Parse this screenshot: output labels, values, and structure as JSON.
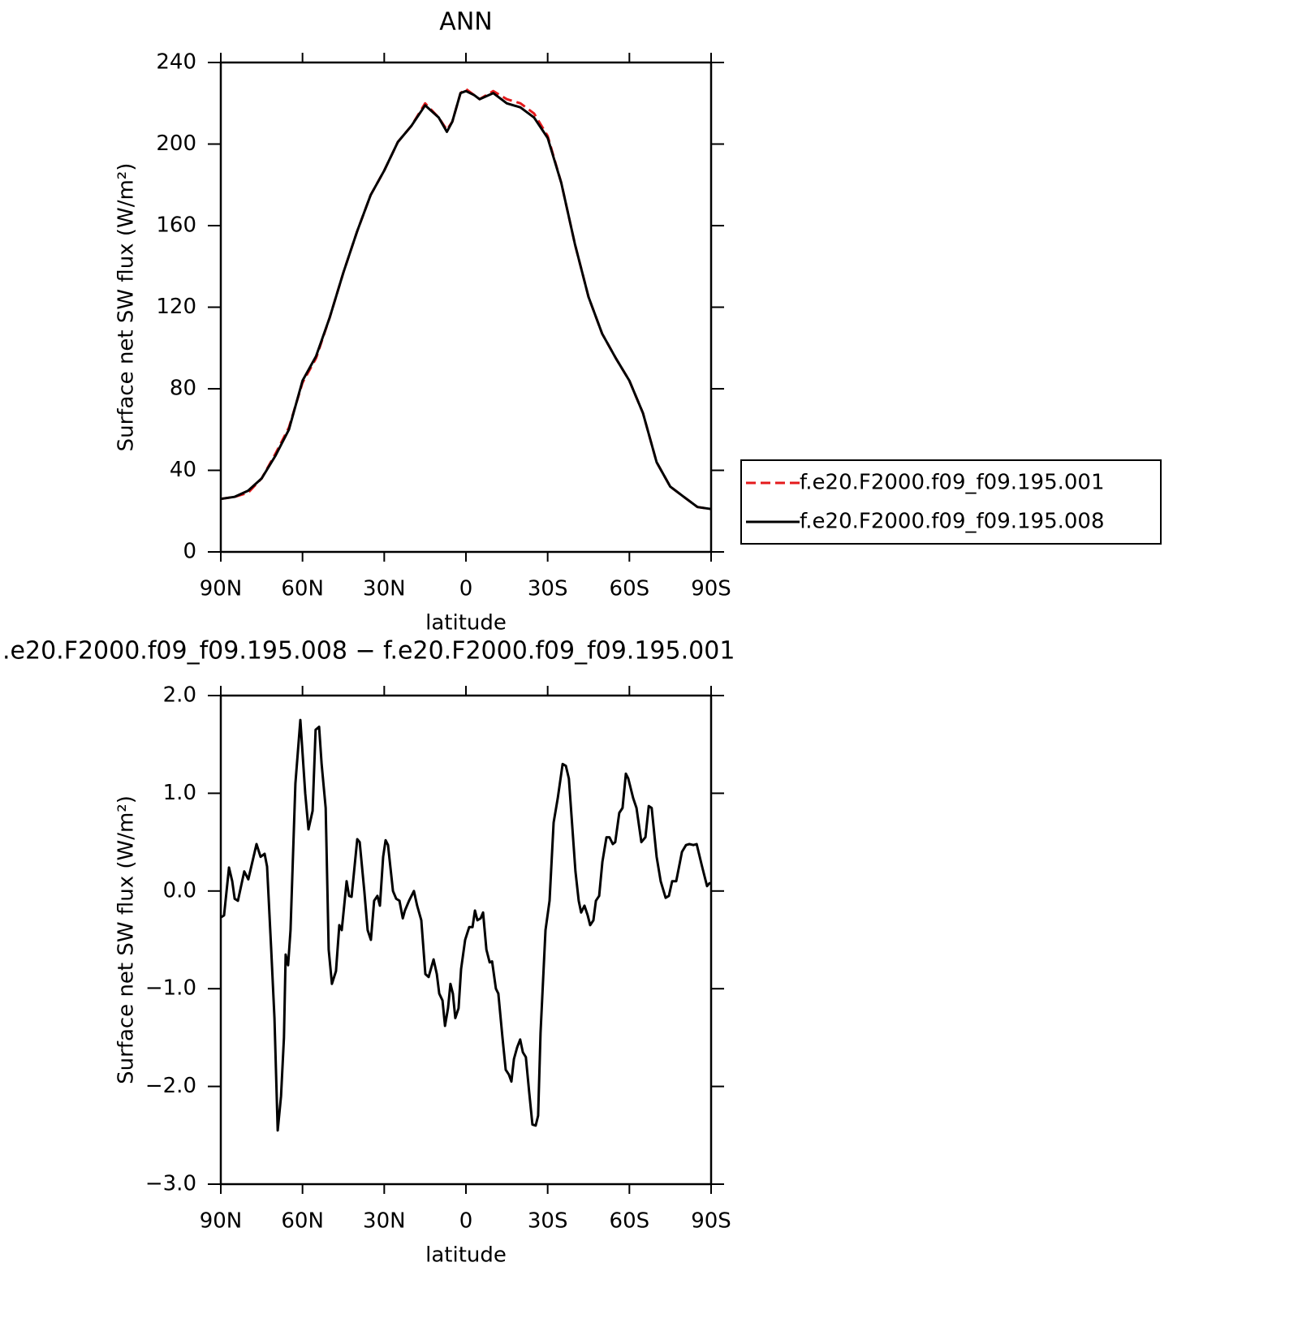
{
  "chart_data": [
    {
      "type": "line",
      "title": "ANN",
      "xlabel": "latitude",
      "ylabel": "Surface net SW flux (W/m²)",
      "x": [
        90,
        85,
        80,
        75,
        70,
        65,
        60,
        55,
        50,
        45,
        40,
        35,
        30,
        25,
        20,
        15,
        10,
        7,
        5,
        2,
        0,
        -3,
        -5,
        -10,
        -15,
        -20,
        -25,
        -30,
        -35,
        -40,
        -45,
        -50,
        -55,
        -60,
        -65,
        -70,
        -75,
        -80,
        -85,
        -90
      ],
      "series": [
        {
          "name": "f.e20.F2000.f09_f09.195.001",
          "color": "#e41a1c",
          "dash": true,
          "values": [
            26,
            27,
            29,
            36,
            48,
            61,
            83,
            95,
            115,
            137,
            157,
            175,
            187,
            201,
            209,
            220,
            213,
            207,
            211,
            225,
            227,
            224,
            222,
            226,
            222,
            220,
            215,
            204,
            181,
            151,
            125,
            107,
            95,
            84,
            68,
            44,
            32,
            27,
            22,
            21
          ]
        },
        {
          "name": "f.e20.F2000.f09_f09.195.008",
          "color": "#000000",
          "dash": false,
          "values": [
            26,
            27,
            30,
            36,
            47,
            60,
            84,
            96,
            115,
            137,
            157,
            175,
            187,
            201,
            209,
            219,
            213,
            206,
            211,
            225,
            226,
            224,
            222,
            225,
            220,
            218,
            213,
            203,
            181,
            151,
            125,
            107,
            95,
            84,
            68,
            44,
            32,
            27,
            22,
            21
          ]
        }
      ],
      "xlim": [
        90,
        -90
      ],
      "xticks": [
        {
          "value": 90,
          "label": "90N"
        },
        {
          "value": 60,
          "label": "60N"
        },
        {
          "value": 30,
          "label": "30N"
        },
        0,
        {
          "value": -30,
          "label": "30S"
        },
        {
          "value": -60,
          "label": "60S"
        },
        {
          "value": -90,
          "label": "90S"
        }
      ],
      "ylim": [
        0,
        240
      ],
      "yticks": [
        0,
        40,
        80,
        120,
        160,
        200,
        240
      ],
      "legend": "right"
    },
    {
      "type": "line",
      "title": ".e20.F2000.f09_f09.195.008 − f.e20.F2000.f09_f09.195.001",
      "xlabel": "latitude",
      "ylabel": "Surface net SW flux (W/m²)",
      "x": [
        90,
        88.8,
        87.0,
        85.8,
        84.9,
        83.7,
        81.4,
        79.9,
        76.9,
        75.4,
        73.9,
        73.0,
        71.5,
        70.3,
        69.1,
        67.9,
        66.8,
        66.2,
        65.3,
        64.4,
        62.6,
        60.8,
        59.0,
        57.8,
        56.3,
        55.2,
        53.9,
        53.0,
        51.5,
        50.4,
        49.2,
        47.7,
        46.5,
        45.6,
        43.8,
        42.9,
        42.0,
        39.9,
        39.0,
        37.3,
        36.1,
        34.9,
        33.7,
        32.5,
        31.6,
        30.4,
        29.5,
        28.6,
        26.8,
        25.6,
        24.4,
        23.2,
        22.4,
        20.9,
        19.1,
        17.9,
        16.4,
        14.9,
        13.7,
        11.9,
        10.7,
        9.8,
        8.6,
        7.7,
        6.6,
        5.7,
        4.8,
        3.9,
        2.7,
        1.8,
        0.3,
        -1.2,
        -2.4,
        -3.3,
        -4.2,
        -5.4,
        -6.3,
        -7.5,
        -8.7,
        -9.6,
        -11.0,
        -11.9,
        -13.4,
        -14.6,
        -15.8,
        -16.7,
        -17.6,
        -18.8,
        -19.9,
        -20.9,
        -22.0,
        -23.2,
        -24.4,
        -25.6,
        -26.5,
        -27.4,
        -29.2,
        -30.7,
        -32.2,
        -33.7,
        -35.5,
        -36.7,
        -37.8,
        -40.2,
        -41.4,
        -42.3,
        -43.5,
        -44.7,
        -45.6,
        -46.8,
        -47.7,
        -48.9,
        -50.1,
        -51.6,
        -52.7,
        -53.9,
        -54.8,
        -56.3,
        -57.5,
        -58.7,
        -59.6,
        -61.4,
        -62.6,
        -64.4,
        -65.9,
        -67.1,
        -68.2,
        -70.0,
        -71.5,
        -73.3,
        -74.5,
        -75.7,
        -77.2,
        -78.1,
        -79.3,
        -80.8,
        -82.0,
        -83.5,
        -84.7,
        -86.7,
        -88.5,
        -89.4,
        -90
      ],
      "series": [
        {
          "color": "#000000",
          "dash": false,
          "values": [
            -0.27,
            -0.25,
            0.24,
            0.1,
            -0.08,
            -0.1,
            0.2,
            0.12,
            0.48,
            0.35,
            0.38,
            0.25,
            -0.6,
            -1.3,
            -2.45,
            -2.1,
            -1.5,
            -0.65,
            -0.76,
            -0.4,
            1.1,
            1.75,
            1.0,
            0.63,
            0.82,
            1.65,
            1.68,
            1.3,
            0.85,
            -0.6,
            -0.95,
            -0.82,
            -0.35,
            -0.4,
            0.1,
            -0.05,
            -0.06,
            0.53,
            0.5,
            0.0,
            -0.4,
            -0.5,
            -0.1,
            -0.05,
            -0.15,
            0.35,
            0.52,
            0.47,
            0.0,
            -0.08,
            -0.1,
            -0.28,
            -0.2,
            -0.1,
            0.0,
            -0.15,
            -0.3,
            -0.85,
            -0.88,
            -0.7,
            -0.85,
            -1.05,
            -1.12,
            -1.38,
            -1.2,
            -0.95,
            -1.05,
            -1.3,
            -1.2,
            -0.8,
            -0.5,
            -0.37,
            -0.37,
            -0.2,
            -0.3,
            -0.28,
            -0.22,
            -0.6,
            -0.73,
            -0.72,
            -1.0,
            -1.05,
            -1.5,
            -1.83,
            -1.88,
            -1.95,
            -1.72,
            -1.6,
            -1.52,
            -1.65,
            -1.7,
            -2.05,
            -2.39,
            -2.4,
            -2.3,
            -1.45,
            -0.4,
            -0.1,
            0.7,
            0.95,
            1.3,
            1.28,
            1.15,
            0.2,
            -0.1,
            -0.22,
            -0.15,
            -0.25,
            -0.35,
            -0.3,
            -0.1,
            -0.05,
            0.3,
            0.55,
            0.55,
            0.48,
            0.5,
            0.8,
            0.85,
            1.2,
            1.15,
            0.95,
            0.85,
            0.5,
            0.55,
            0.87,
            0.85,
            0.35,
            0.1,
            -0.07,
            -0.05,
            0.1,
            0.1,
            0.23,
            0.4,
            0.47,
            0.48,
            0.47,
            0.48,
            0.25,
            0.05,
            0.08,
            0.08
          ]
        }
      ],
      "xlim": [
        90,
        -90
      ],
      "xticks": [
        {
          "value": 90,
          "label": "90N"
        },
        {
          "value": 60,
          "label": "60N"
        },
        {
          "value": 30,
          "label": "30N"
        },
        0,
        {
          "value": -30,
          "label": "30S"
        },
        {
          "value": -60,
          "label": "60S"
        },
        {
          "value": -90,
          "label": "90S"
        }
      ],
      "ylim": [
        -3,
        2
      ],
      "yticks": [
        {
          "value": 2,
          "label": "2.0"
        },
        {
          "value": 1,
          "label": "1.0"
        },
        {
          "value": 0,
          "label": "0.0"
        },
        {
          "value": -1,
          "label": "−1.0"
        },
        {
          "value": -2,
          "label": "−2.0"
        },
        {
          "value": -3,
          "label": "−3.0"
        }
      ]
    }
  ]
}
